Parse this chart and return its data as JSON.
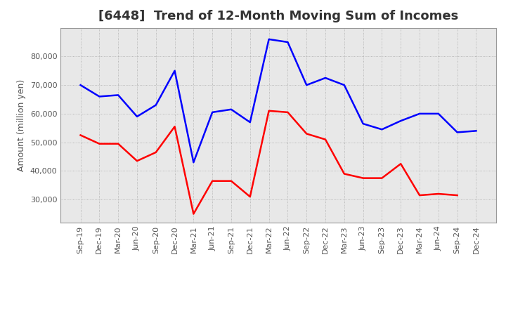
{
  "title": "[6448]  Trend of 12-Month Moving Sum of Incomes",
  "ylabel": "Amount (million yen)",
  "x_labels": [
    "Sep-19",
    "Dec-19",
    "Mar-20",
    "Jun-20",
    "Sep-20",
    "Dec-20",
    "Mar-21",
    "Jun-21",
    "Sep-21",
    "Dec-21",
    "Mar-22",
    "Jun-22",
    "Sep-22",
    "Dec-22",
    "Mar-23",
    "Jun-23",
    "Sep-23",
    "Dec-23",
    "Mar-24",
    "Jun-24",
    "Sep-24",
    "Dec-24"
  ],
  "ordinary_income": [
    70000,
    66000,
    66500,
    59000,
    63000,
    75000,
    43000,
    60500,
    61500,
    57000,
    86000,
    85000,
    70000,
    72500,
    70000,
    56500,
    54500,
    57500,
    60000,
    60000,
    53500,
    54000
  ],
  "net_income": [
    52500,
    49500,
    49500,
    43500,
    46500,
    55500,
    25000,
    36500,
    36500,
    31000,
    61000,
    60500,
    53000,
    51000,
    39000,
    37500,
    37500,
    42500,
    31500,
    32000,
    31500,
    null
  ],
  "ordinary_color": "#0000FF",
  "net_color": "#FF0000",
  "bg_color": "#FFFFFF",
  "plot_bg_color": "#E8E8E8",
  "grid_color": "#AAAAAA",
  "ylim_min": 22000,
  "ylim_max": 90000,
  "yticks": [
    30000,
    40000,
    50000,
    60000,
    70000,
    80000
  ],
  "title_fontsize": 13,
  "ylabel_fontsize": 9,
  "tick_fontsize": 8,
  "line_width": 1.8
}
